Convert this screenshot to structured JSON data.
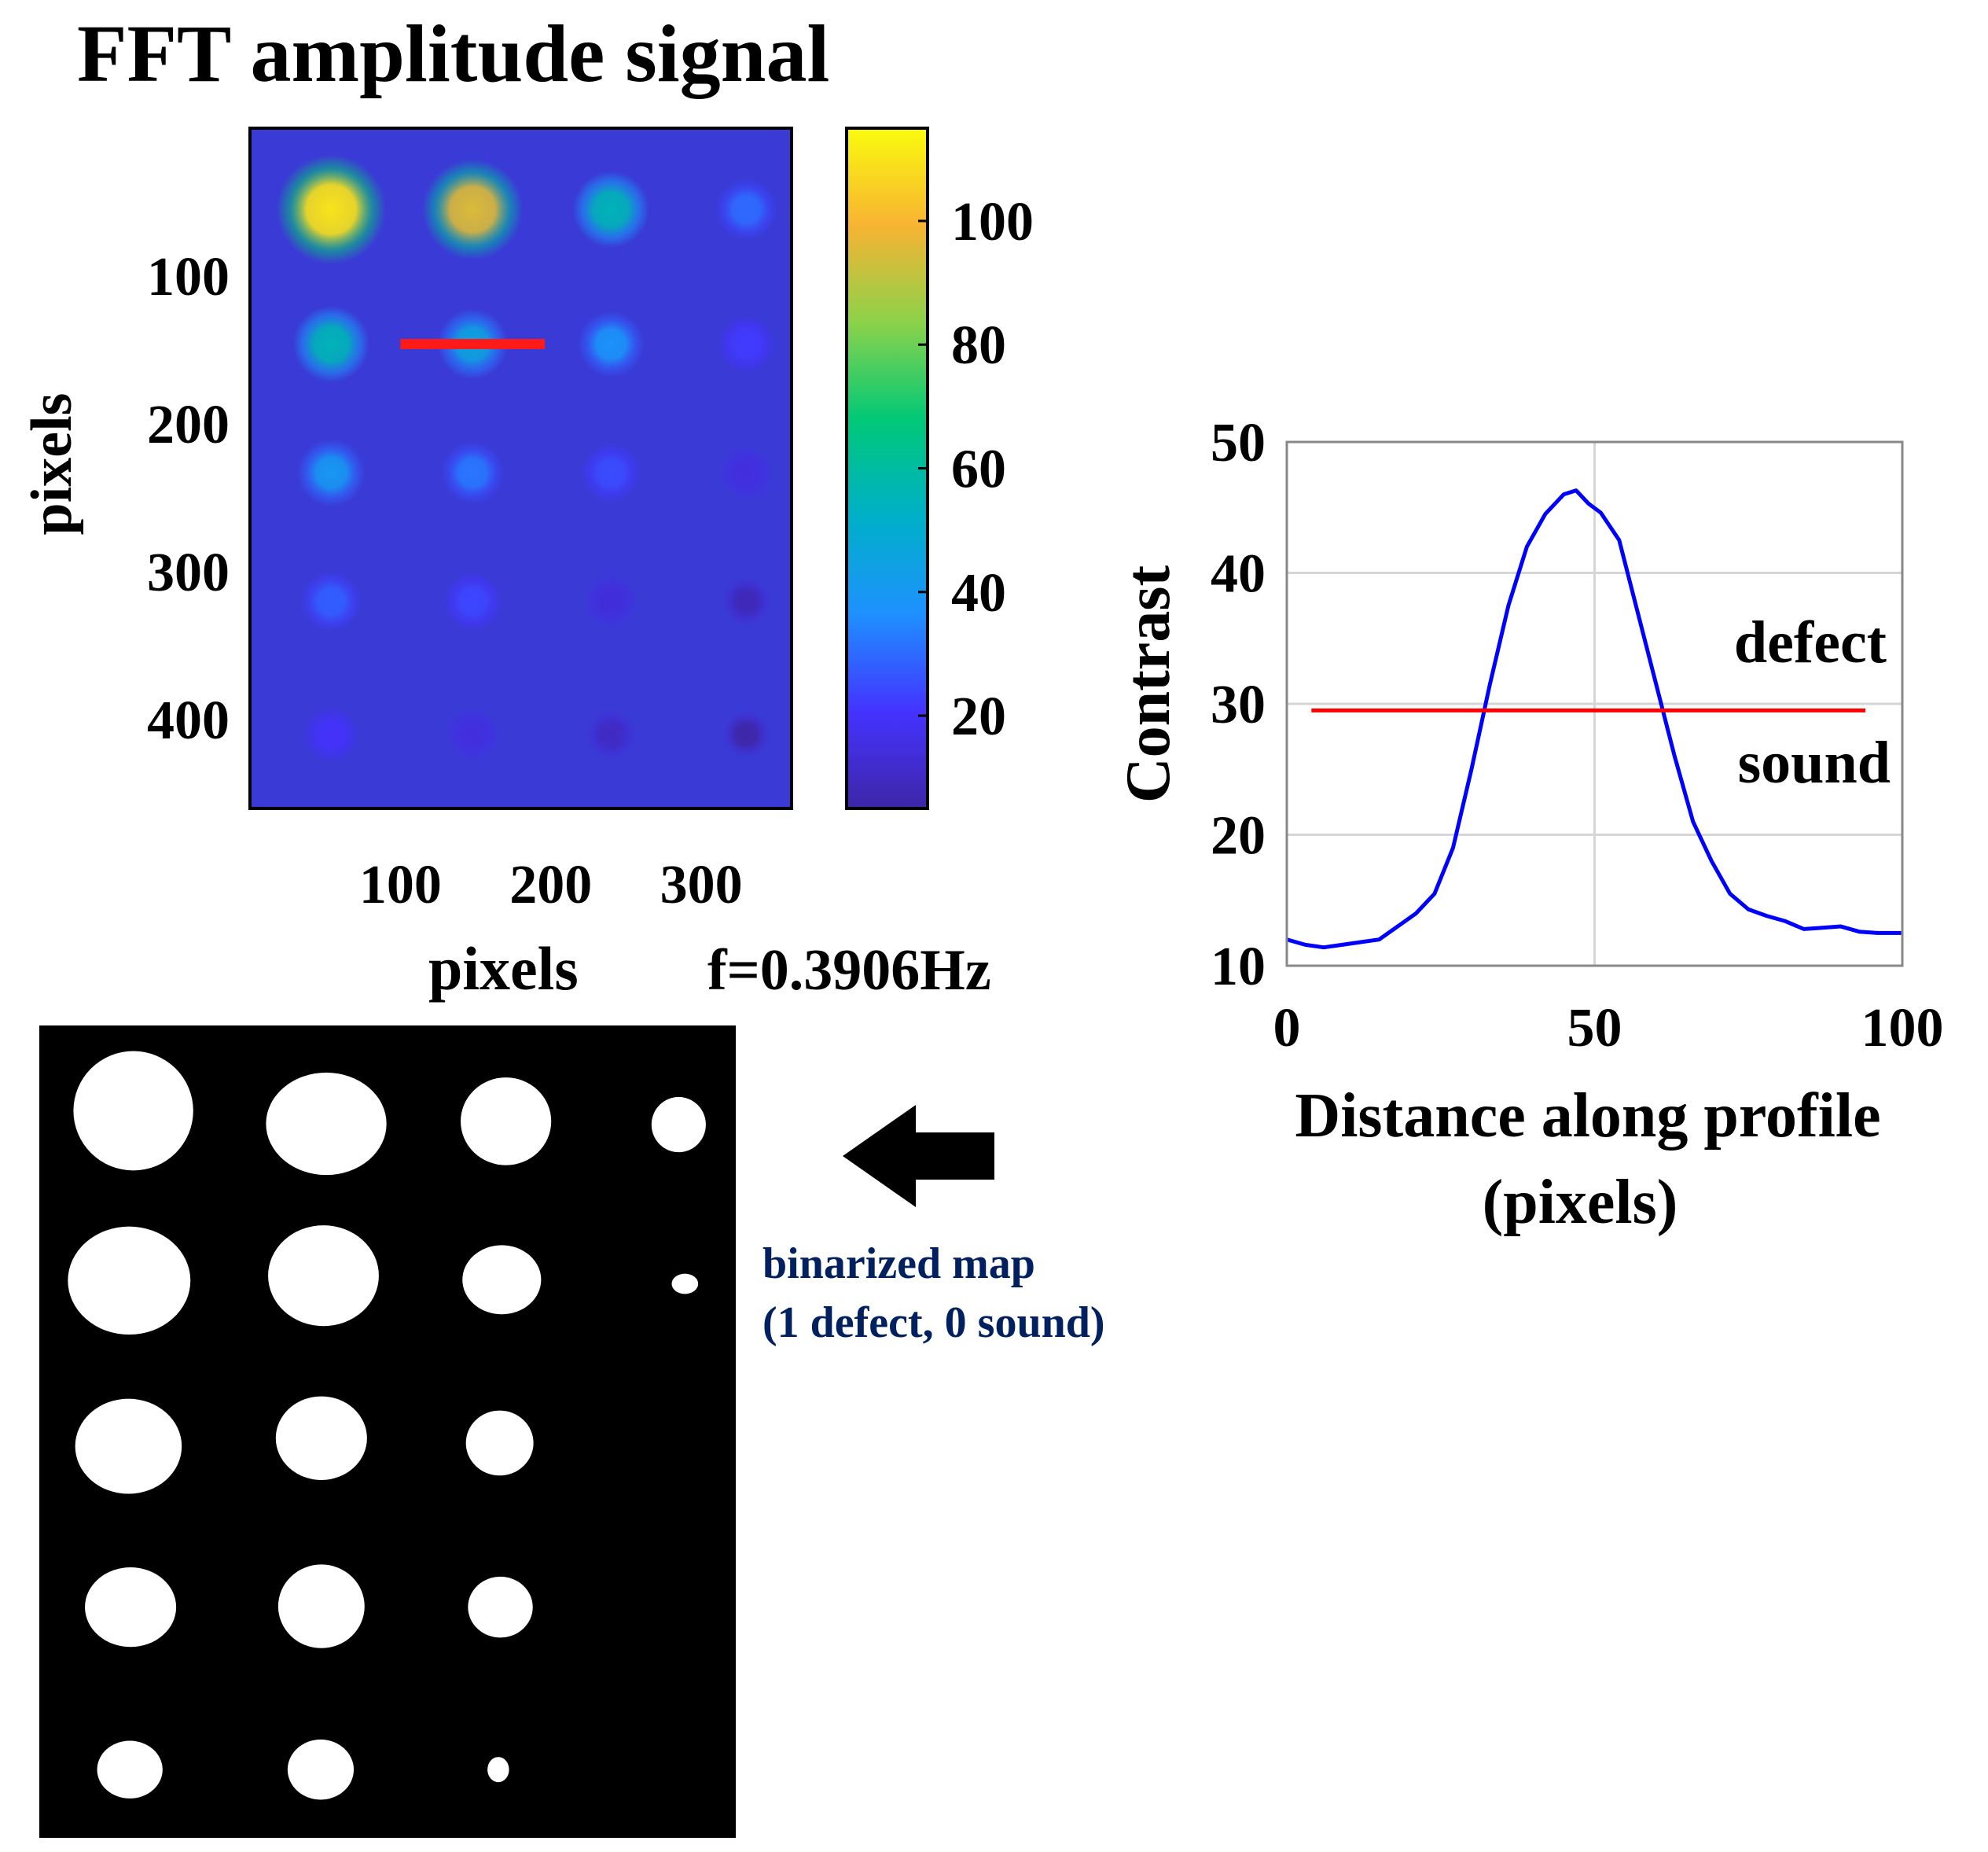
{
  "colors": {
    "background": "#ffffff",
    "heatmap_base": "#3a3ad6",
    "profile_line": "#0000ff",
    "threshold_line": "#ff0000",
    "binary_bg": "#000000",
    "binary_fg": "#ffffff",
    "caption": "#002060"
  },
  "chart_data": [
    {
      "type": "heatmap",
      "title": "FFT amplitude signal",
      "xlabel": "pixels",
      "ylabel": "pixels",
      "xticks": [
        100,
        200,
        300
      ],
      "yticks": [
        100,
        200,
        300,
        400
      ],
      "xlim": [
        0,
        360
      ],
      "ylim": [
        460,
        0
      ],
      "annotation": "f=0.3906Hz",
      "colorbar": {
        "range": [
          5,
          115
        ],
        "ticks": [
          20,
          40,
          60,
          80,
          100
        ],
        "colormap": [
          "#3e26a8",
          "#4433ff",
          "#1e90ff",
          "#00b0c8",
          "#00c878",
          "#8cd24a",
          "#f8b332",
          "#f9fb0e"
        ]
      },
      "profile_segment": {
        "x": [
          100,
          196
        ],
        "y": [
          146,
          146
        ]
      },
      "spots": {
        "columns_x": [
          54,
          148,
          240,
          330
        ],
        "rows_y": [
          55,
          146,
          233,
          320,
          410
        ],
        "amplitudes": [
          [
            110,
            95,
            55,
            30
          ],
          [
            55,
            45,
            38,
            22
          ],
          [
            40,
            32,
            25,
            15
          ],
          [
            28,
            24,
            14,
            8
          ],
          [
            20,
            15,
            10,
            5
          ]
        ]
      }
    },
    {
      "type": "line",
      "xlabel": "Distance along profile",
      "xlabel2": "(pixels)",
      "ylabel": "Contrast",
      "xlim": [
        0,
        100
      ],
      "ylim": [
        10,
        50
      ],
      "xticks": [
        0,
        50,
        100
      ],
      "yticks": [
        10,
        20,
        30,
        40,
        50
      ],
      "grid": true,
      "series": [
        {
          "name": "profile",
          "x": [
            0,
            3,
            6,
            9,
            12,
            15,
            18,
            21,
            24,
            27,
            30,
            33,
            36,
            39,
            42,
            45,
            47,
            49,
            51,
            54,
            57,
            60,
            63,
            66,
            69,
            72,
            75,
            78,
            81,
            84,
            87,
            90,
            93,
            96,
            100
          ],
          "values": [
            12.0,
            11.6,
            11.4,
            11.6,
            11.8,
            12.0,
            13.0,
            14.0,
            15.5,
            19.0,
            25.0,
            31.5,
            37.5,
            42.0,
            44.5,
            46.0,
            46.3,
            45.3,
            44.6,
            42.5,
            37.0,
            31.5,
            26.0,
            21.0,
            18.0,
            15.5,
            14.3,
            13.8,
            13.4,
            12.8,
            12.9,
            13.0,
            12.6,
            12.5,
            12.5
          ]
        },
        {
          "name": "threshold",
          "x": [
            4,
            94
          ],
          "values": [
            29.5,
            29.5
          ]
        }
      ],
      "annotations": [
        "defect",
        "sound"
      ]
    },
    {
      "type": "heatmap",
      "title": "binarized map",
      "subtitle": "(1 defect, 0 sound)",
      "blobs": [
        [
          [
            0.135,
            0.105,
            0.172,
            0.147
          ],
          [
            0.412,
            0.121,
            0.173,
            0.126
          ],
          [
            0.67,
            0.118,
            0.13,
            0.108
          ],
          [
            0.918,
            0.122,
            0.078,
            0.068
          ]
        ],
        [
          [
            0.129,
            0.314,
            0.176,
            0.133
          ],
          [
            0.408,
            0.308,
            0.159,
            0.124
          ],
          [
            0.664,
            0.313,
            0.113,
            0.085
          ],
          [
            0.927,
            0.318,
            0.038,
            0.025
          ]
        ],
        [
          [
            0.128,
            0.518,
            0.153,
            0.117
          ],
          [
            0.405,
            0.508,
            0.131,
            0.103
          ],
          [
            0.661,
            0.514,
            0.097,
            0.08
          ]
        ],
        [
          [
            0.131,
            0.716,
            0.131,
            0.098
          ],
          [
            0.405,
            0.715,
            0.124,
            0.103
          ],
          [
            0.662,
            0.716,
            0.093,
            0.075
          ]
        ],
        [
          [
            0.13,
            0.916,
            0.094,
            0.071
          ],
          [
            0.404,
            0.916,
            0.095,
            0.074
          ],
          [
            0.659,
            0.916,
            0.031,
            0.031
          ]
        ]
      ]
    }
  ]
}
